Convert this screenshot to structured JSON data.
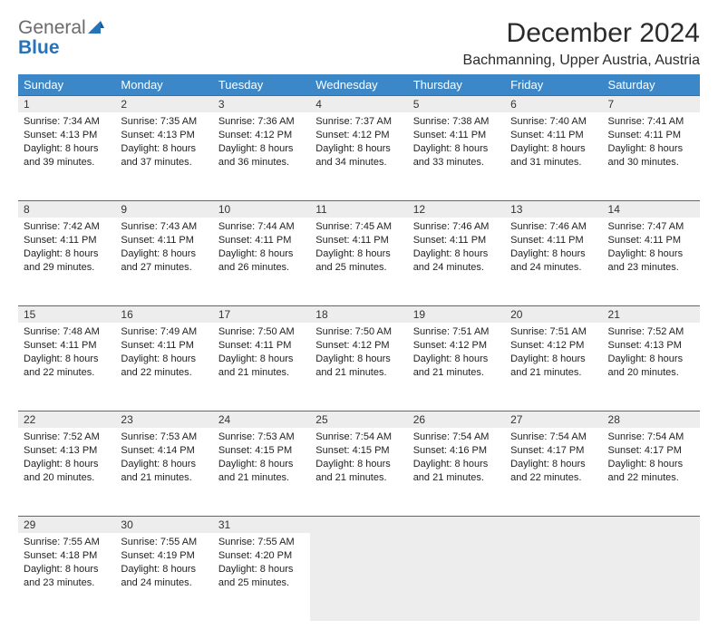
{
  "brand": {
    "part1": "General",
    "part2": "Blue"
  },
  "header": {
    "title": "December 2024",
    "location": "Bachmanning, Upper Austria, Austria"
  },
  "style": {
    "header_bg": "#3b87c8",
    "header_text": "#ffffff",
    "daynum_bg": "#ededed",
    "border_color": "#3b6fa0",
    "body_font_size": 11,
    "dayname_font_size": 13
  },
  "daynames": [
    "Sunday",
    "Monday",
    "Tuesday",
    "Wednesday",
    "Thursday",
    "Friday",
    "Saturday"
  ],
  "weeks": [
    {
      "nums": [
        "1",
        "2",
        "3",
        "4",
        "5",
        "6",
        "7"
      ],
      "cells": [
        {
          "sr": "Sunrise: 7:34 AM",
          "ss": "Sunset: 4:13 PM",
          "d1": "Daylight: 8 hours",
          "d2": "and 39 minutes."
        },
        {
          "sr": "Sunrise: 7:35 AM",
          "ss": "Sunset: 4:13 PM",
          "d1": "Daylight: 8 hours",
          "d2": "and 37 minutes."
        },
        {
          "sr": "Sunrise: 7:36 AM",
          "ss": "Sunset: 4:12 PM",
          "d1": "Daylight: 8 hours",
          "d2": "and 36 minutes."
        },
        {
          "sr": "Sunrise: 7:37 AM",
          "ss": "Sunset: 4:12 PM",
          "d1": "Daylight: 8 hours",
          "d2": "and 34 minutes."
        },
        {
          "sr": "Sunrise: 7:38 AM",
          "ss": "Sunset: 4:11 PM",
          "d1": "Daylight: 8 hours",
          "d2": "and 33 minutes."
        },
        {
          "sr": "Sunrise: 7:40 AM",
          "ss": "Sunset: 4:11 PM",
          "d1": "Daylight: 8 hours",
          "d2": "and 31 minutes."
        },
        {
          "sr": "Sunrise: 7:41 AM",
          "ss": "Sunset: 4:11 PM",
          "d1": "Daylight: 8 hours",
          "d2": "and 30 minutes."
        }
      ]
    },
    {
      "nums": [
        "8",
        "9",
        "10",
        "11",
        "12",
        "13",
        "14"
      ],
      "cells": [
        {
          "sr": "Sunrise: 7:42 AM",
          "ss": "Sunset: 4:11 PM",
          "d1": "Daylight: 8 hours",
          "d2": "and 29 minutes."
        },
        {
          "sr": "Sunrise: 7:43 AM",
          "ss": "Sunset: 4:11 PM",
          "d1": "Daylight: 8 hours",
          "d2": "and 27 minutes."
        },
        {
          "sr": "Sunrise: 7:44 AM",
          "ss": "Sunset: 4:11 PM",
          "d1": "Daylight: 8 hours",
          "d2": "and 26 minutes."
        },
        {
          "sr": "Sunrise: 7:45 AM",
          "ss": "Sunset: 4:11 PM",
          "d1": "Daylight: 8 hours",
          "d2": "and 25 minutes."
        },
        {
          "sr": "Sunrise: 7:46 AM",
          "ss": "Sunset: 4:11 PM",
          "d1": "Daylight: 8 hours",
          "d2": "and 24 minutes."
        },
        {
          "sr": "Sunrise: 7:46 AM",
          "ss": "Sunset: 4:11 PM",
          "d1": "Daylight: 8 hours",
          "d2": "and 24 minutes."
        },
        {
          "sr": "Sunrise: 7:47 AM",
          "ss": "Sunset: 4:11 PM",
          "d1": "Daylight: 8 hours",
          "d2": "and 23 minutes."
        }
      ]
    },
    {
      "nums": [
        "15",
        "16",
        "17",
        "18",
        "19",
        "20",
        "21"
      ],
      "cells": [
        {
          "sr": "Sunrise: 7:48 AM",
          "ss": "Sunset: 4:11 PM",
          "d1": "Daylight: 8 hours",
          "d2": "and 22 minutes."
        },
        {
          "sr": "Sunrise: 7:49 AM",
          "ss": "Sunset: 4:11 PM",
          "d1": "Daylight: 8 hours",
          "d2": "and 22 minutes."
        },
        {
          "sr": "Sunrise: 7:50 AM",
          "ss": "Sunset: 4:11 PM",
          "d1": "Daylight: 8 hours",
          "d2": "and 21 minutes."
        },
        {
          "sr": "Sunrise: 7:50 AM",
          "ss": "Sunset: 4:12 PM",
          "d1": "Daylight: 8 hours",
          "d2": "and 21 minutes."
        },
        {
          "sr": "Sunrise: 7:51 AM",
          "ss": "Sunset: 4:12 PM",
          "d1": "Daylight: 8 hours",
          "d2": "and 21 minutes."
        },
        {
          "sr": "Sunrise: 7:51 AM",
          "ss": "Sunset: 4:12 PM",
          "d1": "Daylight: 8 hours",
          "d2": "and 21 minutes."
        },
        {
          "sr": "Sunrise: 7:52 AM",
          "ss": "Sunset: 4:13 PM",
          "d1": "Daylight: 8 hours",
          "d2": "and 20 minutes."
        }
      ]
    },
    {
      "nums": [
        "22",
        "23",
        "24",
        "25",
        "26",
        "27",
        "28"
      ],
      "cells": [
        {
          "sr": "Sunrise: 7:52 AM",
          "ss": "Sunset: 4:13 PM",
          "d1": "Daylight: 8 hours",
          "d2": "and 20 minutes."
        },
        {
          "sr": "Sunrise: 7:53 AM",
          "ss": "Sunset: 4:14 PM",
          "d1": "Daylight: 8 hours",
          "d2": "and 21 minutes."
        },
        {
          "sr": "Sunrise: 7:53 AM",
          "ss": "Sunset: 4:15 PM",
          "d1": "Daylight: 8 hours",
          "d2": "and 21 minutes."
        },
        {
          "sr": "Sunrise: 7:54 AM",
          "ss": "Sunset: 4:15 PM",
          "d1": "Daylight: 8 hours",
          "d2": "and 21 minutes."
        },
        {
          "sr": "Sunrise: 7:54 AM",
          "ss": "Sunset: 4:16 PM",
          "d1": "Daylight: 8 hours",
          "d2": "and 21 minutes."
        },
        {
          "sr": "Sunrise: 7:54 AM",
          "ss": "Sunset: 4:17 PM",
          "d1": "Daylight: 8 hours",
          "d2": "and 22 minutes."
        },
        {
          "sr": "Sunrise: 7:54 AM",
          "ss": "Sunset: 4:17 PM",
          "d1": "Daylight: 8 hours",
          "d2": "and 22 minutes."
        }
      ]
    },
    {
      "nums": [
        "29",
        "30",
        "31",
        "",
        "",
        "",
        ""
      ],
      "cells": [
        {
          "sr": "Sunrise: 7:55 AM",
          "ss": "Sunset: 4:18 PM",
          "d1": "Daylight: 8 hours",
          "d2": "and 23 minutes."
        },
        {
          "sr": "Sunrise: 7:55 AM",
          "ss": "Sunset: 4:19 PM",
          "d1": "Daylight: 8 hours",
          "d2": "and 24 minutes."
        },
        {
          "sr": "Sunrise: 7:55 AM",
          "ss": "Sunset: 4:20 PM",
          "d1": "Daylight: 8 hours",
          "d2": "and 25 minutes."
        },
        null,
        null,
        null,
        null
      ]
    }
  ]
}
